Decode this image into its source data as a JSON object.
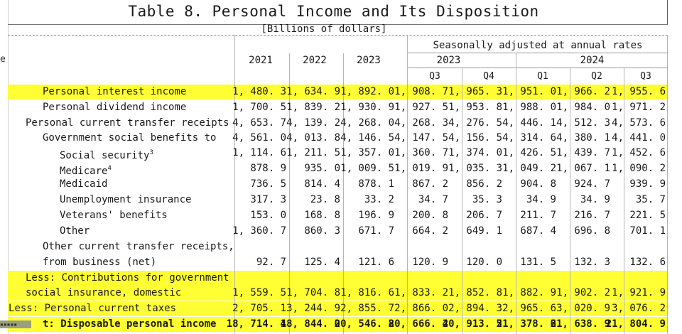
{
  "title": "Table 8. Personal Income and Its Disposition",
  "subtitle": "[Billions of dollars]",
  "cell_stub": "e",
  "header": {
    "season_label": "Seasonally adjusted at annual rates",
    "annual_years": [
      "2021",
      "2022",
      "2023"
    ],
    "quarter_years": [
      "2023",
      "2024"
    ],
    "quarters": [
      "Q3",
      "Q4",
      "Q1",
      "Q2",
      "Q3"
    ]
  },
  "highlight_color": "#ffff33",
  "rows": [
    {
      "label": "Personal interest income",
      "values": [
        "1, 480. 3",
        "1, 634. 9",
        "1, 892. 0",
        "1, 908. 7",
        "1, 965. 3",
        "1, 951. 0",
        "1, 966. 2",
        "1, 955. 6"
      ],
      "highlight": true
    },
    {
      "label": "Personal dividend income",
      "values": [
        "1, 700. 5",
        "1, 839. 2",
        "1, 930. 9",
        "1, 927. 5",
        "1, 953. 8",
        "1, 988. 0",
        "1, 984. 0",
        "1, 971. 2"
      ]
    },
    {
      "label": "Personal current transfer receipts",
      "values": [
        "4, 653. 7",
        "4, 139. 2",
        "4, 268. 0",
        "4, 268. 3",
        "4, 276. 5",
        "4, 446. 1",
        "4, 512. 3",
        "4, 573. 6"
      ]
    },
    {
      "label": "Government social benefits to",
      "values": [
        "4, 561. 0",
        "4, 013. 8",
        "4, 146. 5",
        "4, 147. 5",
        "4, 156. 5",
        "4, 314. 6",
        "4, 380. 1",
        "4, 441. 0"
      ]
    },
    {
      "label": "Social security",
      "note": "3",
      "values": [
        "1, 114. 6",
        "1, 211. 5",
        "1, 357. 0",
        "1, 360. 7",
        "1, 374. 0",
        "1, 426. 5",
        "1, 439. 7",
        "1, 452. 6"
      ]
    },
    {
      "label": "Medicare",
      "note": "4",
      "values": [
        "878. 9",
        "935. 0",
        "1, 009. 5",
        "1, 019. 9",
        "1, 035. 3",
        "1, 049. 2",
        "1, 067. 1",
        "1, 090. 2"
      ]
    },
    {
      "label": "Medicaid",
      "values": [
        "736. 5",
        "814. 4",
        "878. 1",
        "867. 2",
        "856. 2",
        "904. 8",
        "924. 7",
        "939. 9"
      ]
    },
    {
      "label": "Unemployment insurance",
      "values": [
        "317. 3",
        "23. 8",
        "33. 2",
        "34. 7",
        "35. 3",
        "34. 9",
        "34. 9",
        "35. 7"
      ]
    },
    {
      "label": "Veterans' benefits",
      "values": [
        "153. 0",
        "168. 8",
        "196. 9",
        "200. 8",
        "206. 7",
        "211. 7",
        "216. 7",
        "221. 5"
      ]
    },
    {
      "label": "Other",
      "values": [
        "1, 360. 7",
        "860. 3",
        "671. 7",
        "664. 2",
        "649. 1",
        "687. 4",
        "696. 8",
        "701. 1"
      ]
    },
    {
      "label": "Other current transfer receipts,",
      "values": []
    },
    {
      "label": "from business (net)",
      "values": [
        "92. 7",
        "125. 4",
        "121. 6",
        "120. 9",
        "120. 0",
        "131. 5",
        "132. 3",
        "132. 6"
      ]
    },
    {
      "label": "Less: Contributions for government",
      "values": [],
      "highlight": true
    },
    {
      "label": "social insurance, domestic",
      "values": [
        "1, 559. 5",
        "1, 704. 8",
        "1, 816. 6",
        "1, 833. 2",
        "1, 852. 8",
        "1, 882. 9",
        "1, 902. 2",
        "1, 921. 9"
      ],
      "highlight": true
    },
    {
      "label": "Less: Personal current taxes",
      "values": [
        "2, 705. 1",
        "3, 244. 9",
        "2, 855. 7",
        "2, 866. 0",
        "2, 894. 3",
        "2, 965. 6",
        "3, 020. 9",
        "3, 076. 2"
      ],
      "highlight": true
    },
    {
      "label": "t: Disposable personal income",
      "values": [
        "18, 714. 4",
        "18, 844. 0",
        "20, 546. 8",
        "20, 666. 4",
        "20, 913. 5",
        "21, 378. 6",
        "21, 638. 9",
        "21, 804. 9"
      ],
      "highlight": true,
      "bold": true
    }
  ]
}
